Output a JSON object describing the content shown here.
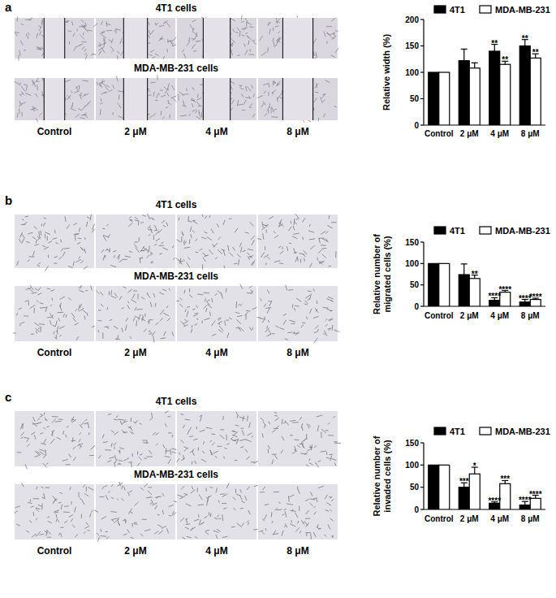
{
  "panels": [
    {
      "label": "a",
      "rows": [
        "4T1 cells",
        "MDA-MB-231 cells"
      ],
      "columns": [
        "Control",
        "2 μM",
        "4 μM",
        "8 μM"
      ]
    },
    {
      "label": "b",
      "rows": [
        "4T1 cells",
        "MDA-MB-231 cells"
      ],
      "columns": [
        "Control",
        "2 μM",
        "4 μM",
        "8 μM"
      ]
    },
    {
      "label": "c",
      "rows": [
        "4T1 cells",
        "MDA-MB-231 cells"
      ],
      "columns": [
        "Control",
        "2 μM",
        "4 μM",
        "8 μM"
      ]
    }
  ],
  "chart_data": [
    {
      "type": "bar",
      "y_label": [
        "Relative width (%)"
      ],
      "categories": [
        "Control",
        "2 μM",
        "4 μM",
        "8 μM"
      ],
      "ylim": [
        0,
        200
      ],
      "yticks": [
        0,
        50,
        100,
        150,
        200
      ],
      "legend": "top",
      "series": [
        {
          "name": "4T1",
          "color": "#000000",
          "values": [
            100,
            122,
            140,
            150
          ],
          "errors": [
            0,
            22,
            13,
            12
          ],
          "annotations": [
            null,
            null,
            "**",
            "**"
          ]
        },
        {
          "name": "MDA-MB-231",
          "color": "#ffffff",
          "values": [
            100,
            108,
            115,
            127
          ],
          "errors": [
            0,
            10,
            6,
            8
          ],
          "annotations": [
            null,
            null,
            "**",
            "**"
          ]
        }
      ]
    },
    {
      "type": "bar",
      "y_label": [
        "Relative number of",
        "migrated cells (%)"
      ],
      "categories": [
        "Control",
        "2 μM",
        "4 μM",
        "8 μM"
      ],
      "ylim": [
        0,
        150
      ],
      "yticks": [
        0,
        50,
        100,
        150
      ],
      "legend": "top",
      "series": [
        {
          "name": "4T1",
          "color": "#000000",
          "values": [
            100,
            74,
            14,
            10
          ],
          "errors": [
            0,
            25,
            6,
            6
          ],
          "annotations": [
            null,
            null,
            "****",
            "****"
          ]
        },
        {
          "name": "MDA-MB-231",
          "color": "#ffffff",
          "values": [
            100,
            65,
            33,
            16
          ],
          "errors": [
            0,
            8,
            4,
            3
          ],
          "annotations": [
            null,
            "**",
            "****",
            "****"
          ]
        }
      ]
    },
    {
      "type": "bar",
      "y_label": [
        "Relative number of",
        "invaded cells (%)"
      ],
      "categories": [
        "Control",
        "2 μM",
        "4 μM",
        "8 μM"
      ],
      "ylim": [
        0,
        150
      ],
      "yticks": [
        0,
        50,
        100,
        150
      ],
      "legend": "top",
      "series": [
        {
          "name": "4T1",
          "color": "#000000",
          "values": [
            100,
            50,
            14,
            10
          ],
          "errors": [
            0,
            10,
            3,
            8
          ],
          "annotations": [
            null,
            "***",
            "****",
            "****"
          ]
        },
        {
          "name": "MDA-MB-231",
          "color": "#ffffff",
          "values": [
            100,
            80,
            58,
            25
          ],
          "errors": [
            0,
            15,
            7,
            7
          ],
          "annotations": [
            null,
            "*",
            "***",
            "****"
          ]
        }
      ]
    }
  ]
}
